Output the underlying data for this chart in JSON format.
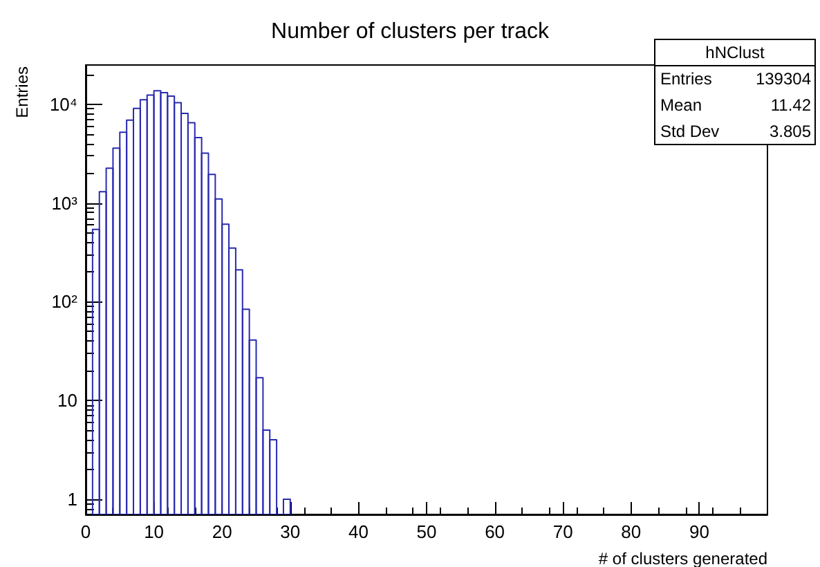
{
  "chart_data": {
    "type": "histogram",
    "title": "Number of clusters per track",
    "xlabel": "# of clusters generated",
    "ylabel": "Entries",
    "bins": [
      1,
      2,
      3,
      4,
      5,
      6,
      7,
      8,
      9,
      10,
      11,
      12,
      13,
      14,
      15,
      16,
      17,
      18,
      19,
      20,
      21,
      22,
      23,
      24,
      25,
      26,
      27,
      28,
      29,
      30
    ],
    "values": [
      540,
      1300,
      2250,
      3600,
      5200,
      6900,
      9100,
      11100,
      12400,
      13700,
      13100,
      12100,
      10400,
      8100,
      6500,
      4600,
      3200,
      1950,
      1100,
      610,
      350,
      210,
      84,
      41,
      17,
      5,
      4,
      null,
      1
    ],
    "color": "#2a2ab0",
    "log": "y",
    "grid": false,
    "xlim": [
      0,
      100
    ],
    "xticks": [
      0,
      10,
      20,
      30,
      40,
      50,
      60,
      70,
      80,
      90
    ],
    "ylim": [
      0.7,
      25000
    ],
    "yticks": [
      1,
      10,
      {
        "value": 100,
        "label": "10²"
      },
      {
        "value": 1000,
        "label": "10³"
      },
      {
        "value": 10000,
        "label": "10⁴"
      }
    ],
    "annotations": [
      "hNClust",
      "Entries",
      "139304",
      "Mean",
      "11.42",
      "Std Dev",
      "3.805"
    ]
  }
}
